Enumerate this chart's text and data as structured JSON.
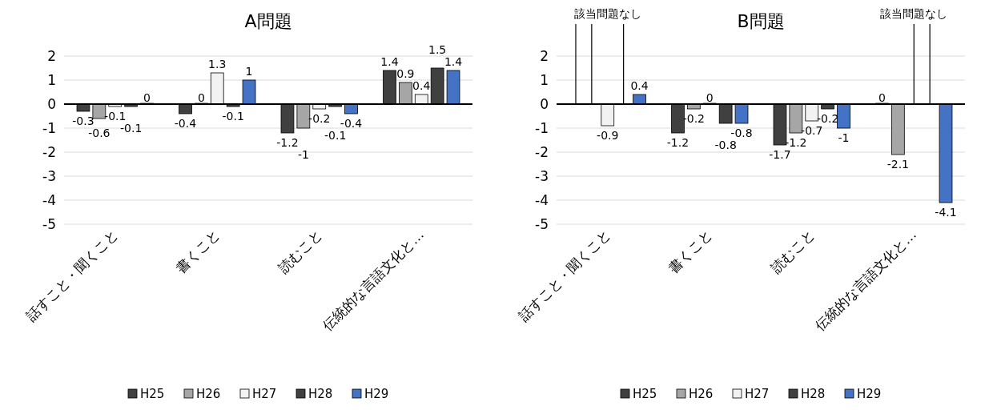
{
  "chart_data": [
    {
      "type": "bar",
      "title": "A問題",
      "categories": [
        "話すこと・聞くこと",
        "書くこと",
        "読むこと",
        "伝統的な言語文化と…"
      ],
      "series": [
        {
          "name": "H25",
          "color": "#404040",
          "values": [
            -0.3,
            -0.4,
            -1.2,
            1.4
          ]
        },
        {
          "name": "H26",
          "color": "#a6a6a6",
          "values": [
            -0.6,
            0,
            -1,
            0.9
          ]
        },
        {
          "name": "H27",
          "color": "#f2f2f2",
          "values": [
            -0.1,
            1.3,
            -0.2,
            0.4
          ]
        },
        {
          "name": "H28",
          "color": "#404040",
          "values": [
            -0.1,
            -0.1,
            -0.1,
            1.5
          ]
        },
        {
          "name": "H29",
          "color": "#4472c4",
          "values": [
            0,
            1,
            -0.4,
            1.4
          ]
        }
      ],
      "ylim": [
        -5,
        2
      ],
      "yticks": [
        -5,
        -4,
        -3,
        -2,
        -1,
        0,
        1,
        2
      ],
      "grid": "y",
      "legend": "bottom",
      "data_labels": true
    },
    {
      "type": "bar",
      "title": "B問題",
      "categories": [
        "話すこと・聞くこと",
        "書くこと",
        "読むこと",
        "伝統的な言語文化と…"
      ],
      "series": [
        {
          "name": "H25",
          "color": "#404040",
          "values": [
            null,
            -1.2,
            -1.7,
            0
          ]
        },
        {
          "name": "H26",
          "color": "#a6a6a6",
          "values": [
            null,
            -0.2,
            -1.2,
            -2.1
          ]
        },
        {
          "name": "H27",
          "color": "#f2f2f2",
          "values": [
            -0.9,
            0,
            -0.7,
            null
          ]
        },
        {
          "name": "H28",
          "color": "#404040",
          "values": [
            null,
            -0.8,
            -0.2,
            null
          ]
        },
        {
          "name": "H29",
          "color": "#4472c4",
          "values": [
            0.4,
            -0.8,
            -1,
            -4.1
          ]
        }
      ],
      "annotations": [
        "該当問題なし",
        "該当問題なし"
      ],
      "ylim": [
        -5,
        2
      ],
      "yticks": [
        -5,
        -4,
        -3,
        -2,
        -1,
        0,
        1,
        2
      ],
      "grid": "y",
      "legend": "bottom",
      "data_labels": true
    }
  ]
}
